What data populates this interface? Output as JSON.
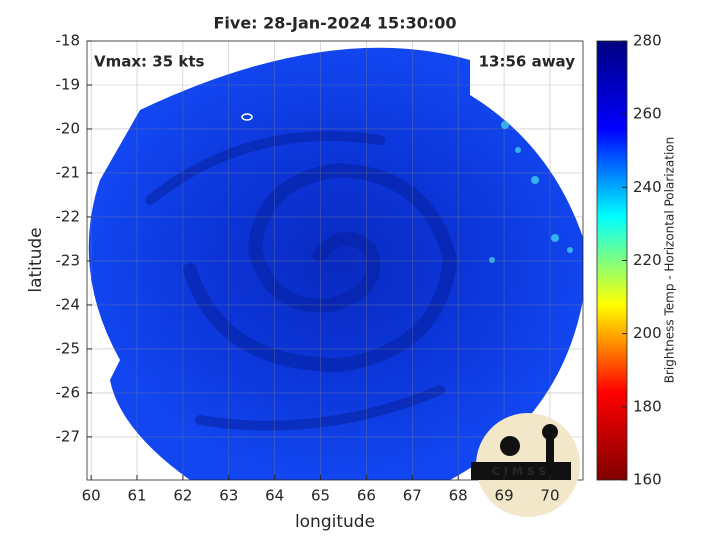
{
  "chart_data": {
    "type": "image",
    "title": "Five: 28-Jan-2024 15:30:00",
    "xlabel": "longitude",
    "ylabel": "latitude",
    "xlim": [
      59.91,
      70.72
    ],
    "xticks": [
      60,
      61,
      62,
      63,
      64,
      65,
      66,
      67,
      68,
      69,
      70
    ],
    "ylim": [
      -27.98,
      -18
    ],
    "yticks": [
      -18,
      -19,
      -20,
      -21,
      -22,
      -23,
      -24,
      -25,
      -26,
      -27
    ],
    "grid": true,
    "annotations": [
      "Vmax: 35 kts",
      "13:56 away"
    ],
    "logo": "CIMSS",
    "colorbar": {
      "label": "Brightness Temp - Horizontal Polarization",
      "lim": [
        160,
        280
      ],
      "ticks": [
        160,
        180,
        200,
        220,
        240,
        260,
        280
      ],
      "colormap": [
        "#800000",
        "#ff0000",
        "#ffff00",
        "#00ffff",
        "#0000ff",
        "#000080"
      ]
    }
  }
}
